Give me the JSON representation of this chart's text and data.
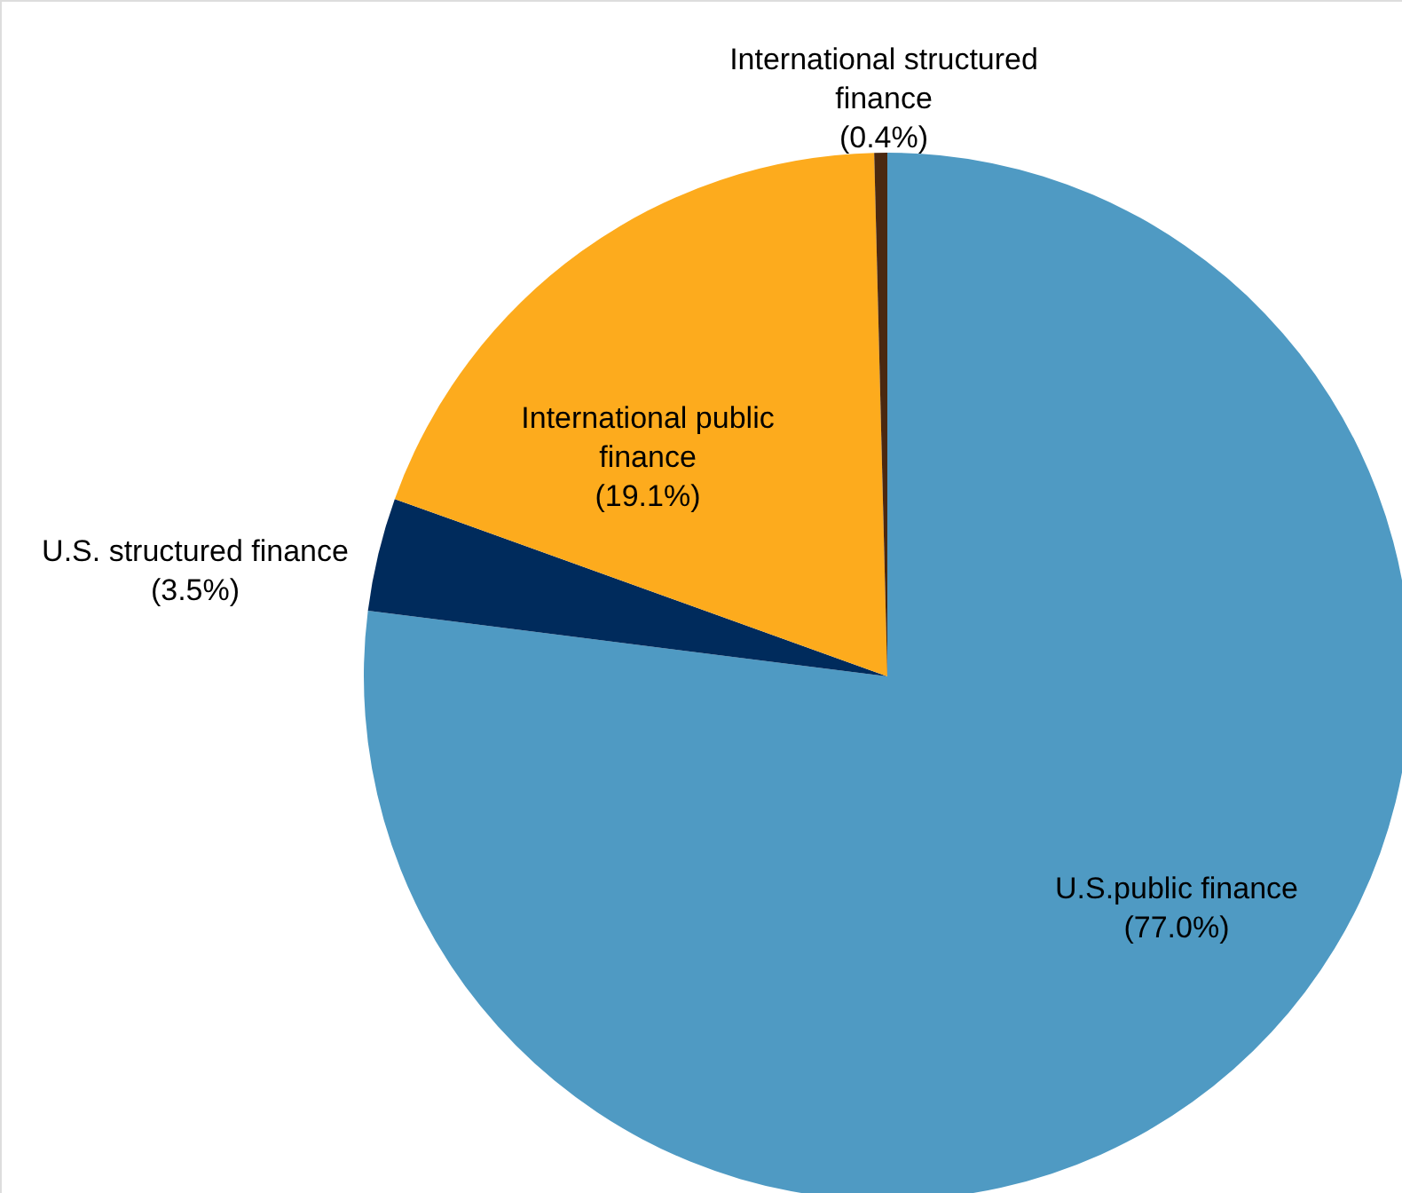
{
  "chart_data": {
    "type": "pie",
    "categories": [
      "U.S.public finance",
      "U.S. structured finance",
      "International public finance",
      "International structured finance"
    ],
    "values": [
      77.0,
      3.5,
      19.1,
      0.4
    ],
    "colors": [
      "#4f9ac3",
      "#002b5c",
      "#fdab1d",
      "#4a2810"
    ],
    "value_labels": [
      "(77.0%)",
      "(3.5%)",
      "(19.1%)",
      "(0.4%)"
    ]
  }
}
